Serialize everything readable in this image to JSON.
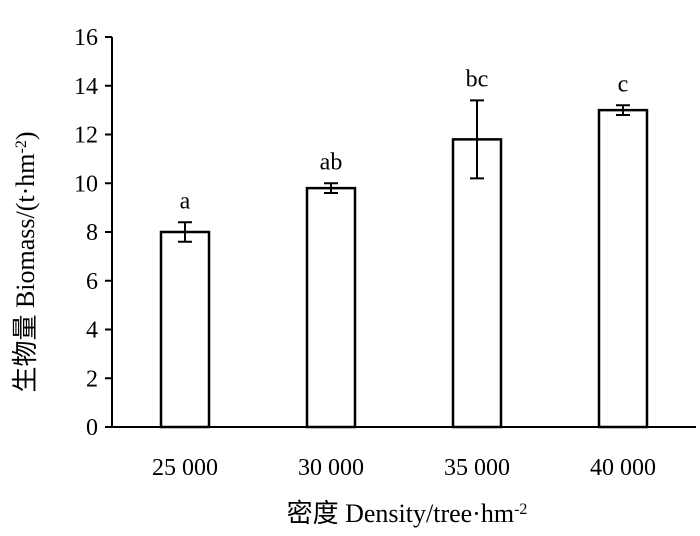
{
  "chart_data": {
    "type": "bar",
    "categories": [
      "25 000",
      "30 000",
      "35 000",
      "40 000"
    ],
    "values": [
      8.0,
      9.8,
      11.8,
      13.0
    ],
    "error": [
      0.4,
      0.2,
      1.6,
      0.2
    ],
    "significance": [
      "a",
      "ab",
      "bc",
      "c"
    ],
    "ylabel_prefix": "生物量 Biomass/(t·hm",
    "ylabel_sup": "-2",
    "ylabel_suffix": ")",
    "xlabel": "密度 Density/tree·hm",
    "xlabel_sup": "-2",
    "ylim": [
      0,
      16
    ],
    "yticks": [
      0,
      2,
      4,
      6,
      8,
      10,
      12,
      14,
      16
    ],
    "bar_fill": "#ffffff",
    "bar_stroke": "#000000",
    "grid": false
  }
}
